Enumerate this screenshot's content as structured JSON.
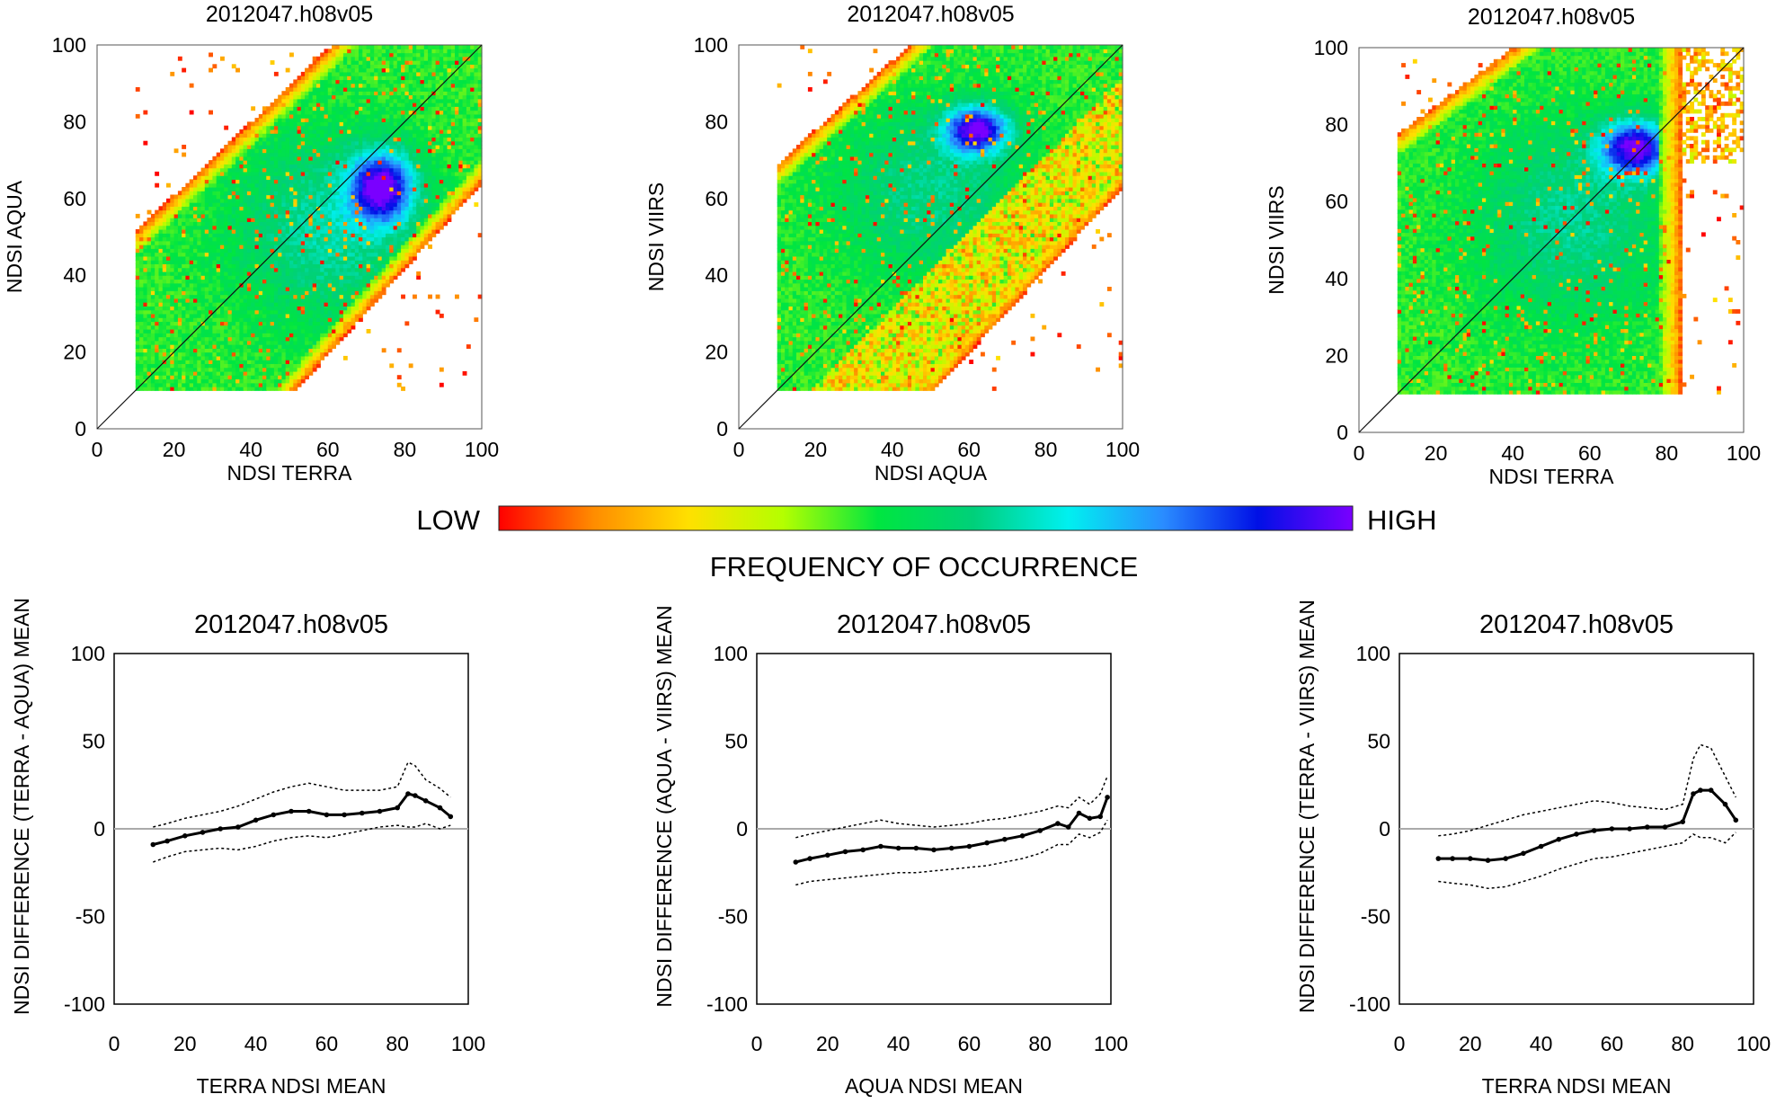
{
  "figure": {
    "colorbar": {
      "low_label": "LOW",
      "high_label": "HIGH",
      "title": "FREQUENCY OF OCCURRENCE",
      "colors": [
        "#ff0000",
        "#ff8c00",
        "#ffe000",
        "#b4ff00",
        "#00e640",
        "#00d07a",
        "#00f0f0",
        "#2a8cff",
        "#0010e6",
        "#7a00ff"
      ]
    }
  },
  "chart_data": [
    {
      "type": "heatmap",
      "title": "2012047.h08v05",
      "xlabel": "NDSI TERRA",
      "ylabel": "NDSI AQUA",
      "xlim": [
        0,
        100
      ],
      "ylim": [
        0,
        100
      ],
      "xticks": [
        0,
        20,
        40,
        60,
        80,
        100
      ],
      "yticks": [
        0,
        20,
        40,
        60,
        80,
        100
      ],
      "one_to_one_line": true,
      "density_mode": {
        "x": 74,
        "y": 63
      },
      "data_range": {
        "x": [
          10,
          100
        ],
        "y": [
          10,
          100
        ]
      }
    },
    {
      "type": "heatmap",
      "title": "2012047.h08v05",
      "xlabel": "NDSI AQUA",
      "ylabel": "NDSI VIIRS",
      "xlim": [
        0,
        100
      ],
      "ylim": [
        0,
        100
      ],
      "xticks": [
        0,
        20,
        40,
        60,
        80,
        100
      ],
      "yticks": [
        0,
        20,
        40,
        60,
        80,
        100
      ],
      "one_to_one_line": true,
      "density_mode": {
        "x": 62,
        "y": 78
      },
      "data_range": {
        "x": [
          10,
          100
        ],
        "y": [
          10,
          100
        ]
      }
    },
    {
      "type": "heatmap",
      "title": "2012047.h08v05",
      "xlabel": "NDSI TERRA",
      "ylabel": "NDSI VIIRS",
      "xlim": [
        0,
        100
      ],
      "ylim": [
        0,
        100
      ],
      "xticks": [
        0,
        20,
        40,
        60,
        80,
        100
      ],
      "yticks": [
        0,
        20,
        40,
        60,
        80,
        100
      ],
      "one_to_one_line": true,
      "density_mode": {
        "x": 72,
        "y": 74
      },
      "data_range": {
        "x": [
          10,
          100
        ],
        "y": [
          10,
          100
        ]
      }
    },
    {
      "type": "line",
      "title": "2012047.h08v05",
      "xlabel": "TERRA NDSI MEAN",
      "ylabel": "NDSI DIFFERENCE (TERRA - AQUA) MEAN",
      "xlim": [
        0,
        100
      ],
      "ylim": [
        -100,
        100
      ],
      "xticks": [
        0,
        20,
        40,
        60,
        80,
        100
      ],
      "yticks": [
        100,
        50,
        0,
        -50,
        -100
      ],
      "x": [
        11,
        15,
        20,
        25,
        30,
        35,
        40,
        45,
        50,
        55,
        60,
        65,
        70,
        75,
        80,
        83,
        85,
        88,
        92,
        95
      ],
      "series": [
        {
          "name": "mean",
          "style": "solid",
          "values": [
            -9,
            -7,
            -4,
            -2,
            0,
            1,
            5,
            8,
            10,
            10,
            8,
            8,
            9,
            10,
            12,
            20,
            19,
            16,
            12,
            7
          ]
        },
        {
          "name": "upper",
          "style": "dotted",
          "values": [
            1,
            3,
            6,
            8,
            10,
            13,
            17,
            21,
            24,
            26,
            24,
            22,
            22,
            22,
            24,
            38,
            36,
            28,
            23,
            18
          ]
        },
        {
          "name": "lower",
          "style": "dotted",
          "values": [
            -19,
            -16,
            -13,
            -12,
            -11,
            -12,
            -10,
            -7,
            -5,
            -4,
            -5,
            -3,
            -1,
            1,
            2,
            1,
            1,
            3,
            0,
            2
          ]
        }
      ]
    },
    {
      "type": "line",
      "title": "2012047.h08v05",
      "xlabel": "AQUA NDSI MEAN",
      "ylabel": "NDSI DIFFERENCE (AQUA - VIIRS) MEAN",
      "xlim": [
        0,
        100
      ],
      "ylim": [
        -100,
        100
      ],
      "xticks": [
        0,
        20,
        40,
        60,
        80,
        100
      ],
      "yticks": [
        100,
        50,
        0,
        -50,
        -100
      ],
      "x": [
        11,
        15,
        20,
        25,
        30,
        35,
        40,
        45,
        50,
        55,
        60,
        65,
        70,
        75,
        80,
        85,
        88,
        91,
        94,
        97,
        99
      ],
      "series": [
        {
          "name": "mean",
          "style": "solid",
          "values": [
            -19,
            -17,
            -15,
            -13,
            -12,
            -10,
            -11,
            -11,
            -12,
            -11,
            -10,
            -8,
            -6,
            -4,
            -1,
            3,
            1,
            9,
            6,
            7,
            18
          ]
        },
        {
          "name": "upper",
          "style": "dotted",
          "values": [
            -5,
            -3,
            -1,
            1,
            3,
            5,
            3,
            2,
            1,
            2,
            3,
            5,
            6,
            8,
            10,
            13,
            12,
            18,
            14,
            20,
            30
          ]
        },
        {
          "name": "lower",
          "style": "dotted",
          "values": [
            -32,
            -30,
            -29,
            -28,
            -27,
            -26,
            -25,
            -25,
            -24,
            -23,
            -22,
            -21,
            -19,
            -17,
            -14,
            -9,
            -9,
            -3,
            -5,
            -2,
            5
          ]
        }
      ]
    },
    {
      "type": "line",
      "title": "2012047.h08v05",
      "xlabel": "TERRA NDSI MEAN",
      "ylabel": "NDSI DIFFERENCE (TERRA - VIIRS) MEAN",
      "xlim": [
        0,
        100
      ],
      "ylim": [
        -100,
        100
      ],
      "xticks": [
        0,
        20,
        40,
        60,
        80,
        100
      ],
      "yticks": [
        100,
        50,
        0,
        -50,
        -100
      ],
      "x": [
        11,
        15,
        20,
        25,
        30,
        35,
        40,
        45,
        50,
        55,
        60,
        65,
        70,
        75,
        80,
        83,
        85,
        88,
        92,
        95
      ],
      "series": [
        {
          "name": "mean",
          "style": "solid",
          "values": [
            -17,
            -17,
            -17,
            -18,
            -17,
            -14,
            -10,
            -6,
            -3,
            -1,
            0,
            0,
            1,
            1,
            4,
            20,
            22,
            22,
            14,
            5
          ]
        },
        {
          "name": "upper",
          "style": "dotted",
          "values": [
            -4,
            -3,
            -1,
            2,
            5,
            8,
            10,
            12,
            14,
            16,
            15,
            13,
            12,
            11,
            14,
            40,
            48,
            46,
            30,
            18
          ]
        },
        {
          "name": "lower",
          "style": "dotted",
          "values": [
            -30,
            -31,
            -32,
            -34,
            -33,
            -30,
            -27,
            -23,
            -20,
            -17,
            -16,
            -14,
            -12,
            -10,
            -8,
            -3,
            -5,
            -5,
            -8,
            -2
          ]
        }
      ]
    }
  ]
}
